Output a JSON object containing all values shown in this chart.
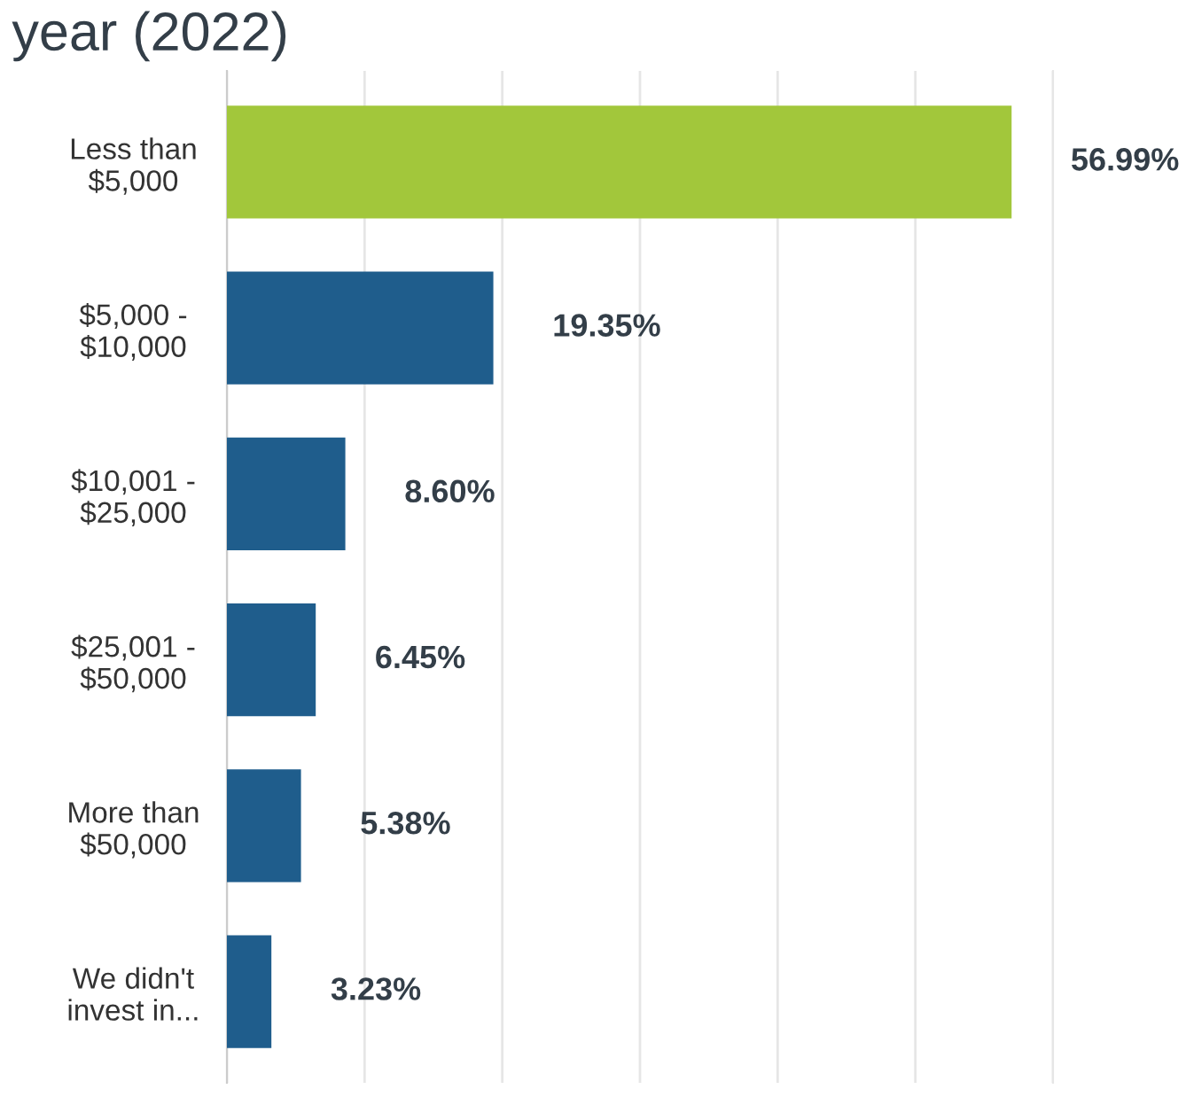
{
  "chart_data": {
    "type": "bar",
    "orientation": "horizontal",
    "title": "year (2022)",
    "categories": [
      "Less than\n$5,000",
      "$5,000 -\n$10,000",
      "$10,001 -\n$25,000",
      "$25,001 -\n$50,000",
      "More than\n$50,000",
      "We didn't\ninvest in..."
    ],
    "values": [
      56.99,
      19.35,
      8.6,
      6.45,
      5.38,
      3.23
    ],
    "colors": [
      "#a2c73b",
      "#1f5d8c",
      "#1f5d8c",
      "#1f5d8c",
      "#1f5d8c",
      "#1f5d8c"
    ],
    "value_labels": [
      "56.99%",
      "19.35%",
      "8.60%",
      "6.45%",
      "5.38%",
      "3.23%"
    ],
    "xlim": [
      0,
      60
    ],
    "xticks": [
      {
        "value": 0,
        "label": null
      },
      {
        "value": 10,
        "label": null
      },
      {
        "value": 20,
        "label": null
      },
      {
        "value": 30,
        "label": null
      },
      {
        "value": 40,
        "label": null
      },
      {
        "value": 50,
        "label": null
      },
      {
        "value": 60,
        "label": null
      }
    ],
    "grid": "x"
  }
}
